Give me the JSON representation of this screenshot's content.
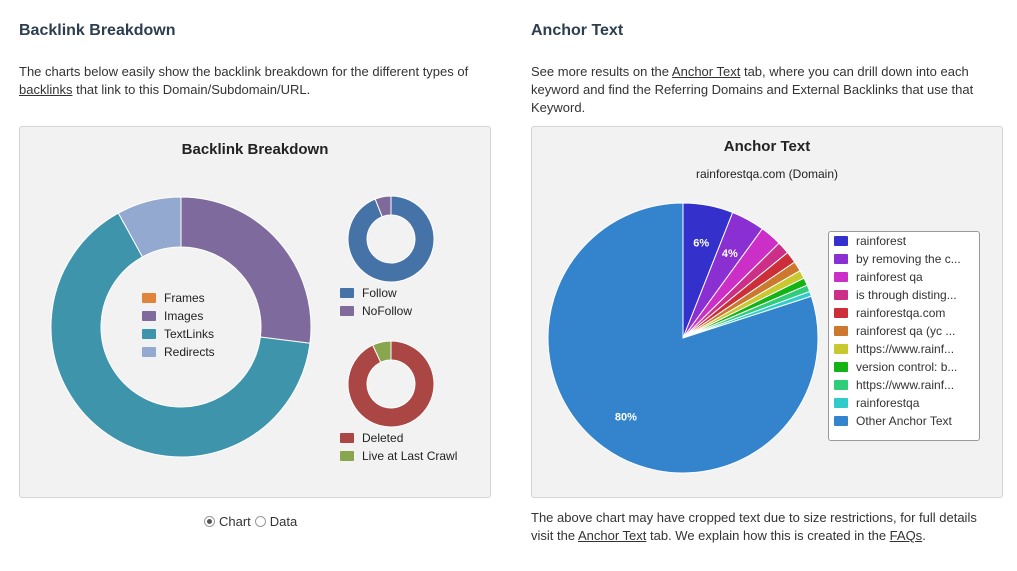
{
  "left": {
    "heading": "Backlink Breakdown",
    "desc_pre": "The charts below easily show the backlink breakdown for the different types of ",
    "desc_link": "backlinks",
    "desc_post": " that link to this Domain/Subdomain/URL.",
    "radio": {
      "chart_label": "Chart",
      "data_label": "Data",
      "selected": "Chart"
    }
  },
  "right": {
    "heading": "Anchor Text",
    "desc_pre": "See more results on the ",
    "desc_link": "Anchor Text",
    "desc_post": " tab, where you can drill down into each keyword and find the Referring Domains and External Backlinks that use that Keyword.",
    "foot_pre": "The above chart may have cropped text due to size restrictions, for full details visit the ",
    "foot_link1": "Anchor Text",
    "foot_mid": " tab. We explain how this is created in the ",
    "foot_link2": "FAQs",
    "foot_post": "."
  },
  "chart_data": [
    {
      "type": "pie",
      "title": "Backlink Breakdown",
      "subtype": "donut",
      "categories": [
        "Frames",
        "Images",
        "TextLinks",
        "Redirects"
      ],
      "values": [
        0,
        27,
        65,
        8
      ],
      "colors": [
        "#e0843c",
        "#7f6a9e",
        "#3d94ab",
        "#93a9d0"
      ]
    },
    {
      "type": "pie",
      "subtype": "donut",
      "categories": [
        "Follow",
        "NoFollow"
      ],
      "values": [
        94,
        6
      ],
      "colors": [
        "#4572a7",
        "#80699b"
      ]
    },
    {
      "type": "pie",
      "subtype": "donut",
      "categories": [
        "Deleted",
        "Live at Last Crawl"
      ],
      "values": [
        93,
        7
      ],
      "colors": [
        "#aa4643",
        "#89a54e"
      ]
    },
    {
      "type": "pie",
      "title": "Anchor Text",
      "subtitle": "rainforestqa.com (Domain)",
      "categories": [
        "rainforest",
        "by removing the c...",
        "rainforest qa",
        "is through disting...",
        "rainforestqa.com",
        "rainforest qa (yc ...",
        "https://www.rainf...",
        "version control: b...",
        "https://www.rainf...",
        "rainforestqa",
        "Other Anchor Text"
      ],
      "values": [
        6,
        4,
        2.6,
        1.5,
        1.4,
        1.2,
        1.0,
        0.9,
        0.8,
        0.6,
        80
      ],
      "data_labels": [
        "6%",
        "4%",
        "",
        "",
        "",
        "",
        "",
        "",
        "",
        "",
        "80%"
      ],
      "colors": [
        "#3330cc",
        "#8a2fd1",
        "#cc2fc8",
        "#cc2f88",
        "#cc2f3a",
        "#cc782f",
        "#c8c82f",
        "#12b312",
        "#2fcc7a",
        "#2fcccb",
        "#3384cc"
      ]
    }
  ]
}
